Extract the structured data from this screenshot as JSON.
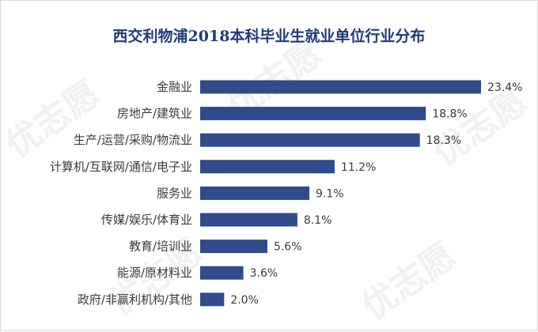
{
  "chart_data": {
    "type": "bar",
    "orientation": "horizontal",
    "title": "西交利物浦2018本科毕业生就业单位行业分布",
    "categories": [
      "金融业",
      "房地产/建筑业",
      "生产/运营/采购/物流业",
      "计算机/互联网/通信/电子业",
      "服务业",
      "传媒/娱乐/体育业",
      "教育/培训业",
      "能源/原材料业",
      "政府/非赢利机构/其他"
    ],
    "values": [
      23.4,
      18.8,
      18.3,
      11.2,
      9.1,
      8.1,
      5.6,
      3.6,
      2.0
    ],
    "value_labels": [
      "23.4%",
      "18.8%",
      "18.3%",
      "11.2%",
      "9.1%",
      "8.1%",
      "5.6%",
      "3.6%",
      "2.0%"
    ],
    "xlim": [
      0,
      23.4
    ],
    "bar_color": "#2f4b8c",
    "grid": false,
    "legend": "none",
    "watermark_text": "优志愿"
  }
}
